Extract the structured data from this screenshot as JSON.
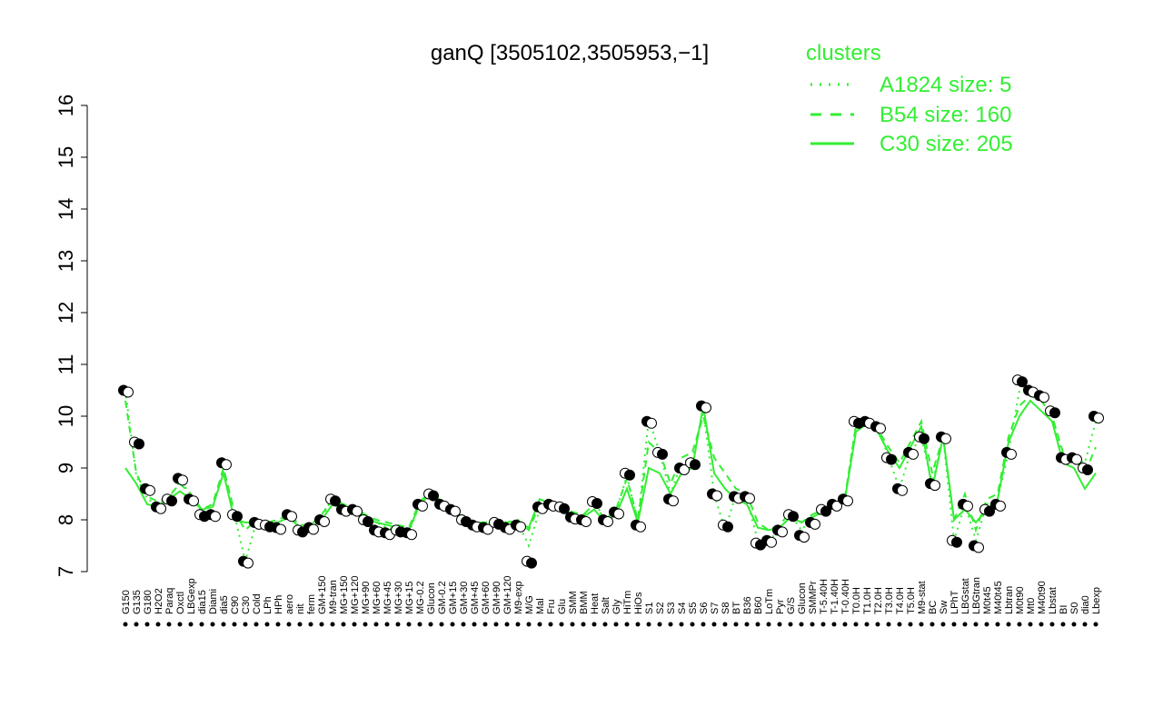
{
  "chart_data": {
    "type": "line",
    "title": "ganQ [3505102,3505953,−1]",
    "xlabel": "",
    "ylabel": "",
    "ylim": [
      7,
      16
    ],
    "yticks": [
      7,
      8,
      9,
      10,
      11,
      12,
      13,
      14,
      15,
      16
    ],
    "grid": false,
    "legend": {
      "title": "clusters",
      "placement": "top-right",
      "entries": [
        {
          "label": "A1824 size: 5",
          "style": "dotted"
        },
        {
          "label": "B54 size: 160",
          "style": "dashed"
        },
        {
          "label": "C30 size: 205",
          "style": "solid"
        }
      ]
    },
    "colors": {
      "line": "#33ee33",
      "point_fill_dark": "#000000",
      "point_fill_light": "#ffffff"
    },
    "x_tick_labels": [
      "G150",
      "G135",
      "G180",
      "H2O2",
      "Paraq",
      "Oxctl",
      "LBGexp",
      "dia15",
      "Diami",
      "dia5",
      "C90",
      "C30",
      "Cold",
      "LPh",
      "HPh",
      "aero",
      "nit",
      "ferm",
      "GM+150",
      "M9-tran",
      "MG+150",
      "MG+120",
      "MG+90",
      "MG+60",
      "MG+45",
      "MG+30",
      "MG+15",
      "MG-0.2",
      "Glucon",
      "GM-0.2",
      "GM+15",
      "GM+30",
      "GM+45",
      "GM+60",
      "GM+90",
      "GM+120",
      "M9-exp",
      "M/G",
      "Mal",
      "Fru",
      "Glu",
      "SMM",
      "BMM",
      "Heat",
      "Salt",
      "Gly",
      "HiTm",
      "HiOs",
      "S1",
      "S2",
      "S3",
      "S4",
      "S5",
      "S6",
      "S7",
      "S8",
      "BT",
      "B36",
      "B60",
      "LoTm",
      "Pyr",
      "G/S",
      "Glucon",
      "SMMPr",
      "T-5.40H",
      "T-1.40H",
      "T-0.40H",
      "T0.0H",
      "T1.0H",
      "T2.0H",
      "T3.0H",
      "T4.0H",
      "T5.0H",
      "M9-stat",
      "BC",
      "Sw",
      "LPhT",
      "LBGstat",
      "LBGtran",
      "M0t45",
      "M40t45",
      "Lbtran",
      "M0t90",
      "Mt0",
      "M40t90",
      "Lbstat",
      "BI",
      "S0",
      "dia0",
      "Lbexp"
    ],
    "series": [
      {
        "name": "A1824 size: 5",
        "values": [
          10.5,
          8.85,
          8.4,
          8.3,
          8.4,
          8.75,
          8.5,
          8.15,
          8.2,
          9.0,
          8.1,
          7.2,
          7.95,
          7.95,
          7.95,
          8.1,
          7.85,
          7.85,
          8.0,
          8.45,
          8.3,
          8.2,
          8.05,
          7.95,
          7.85,
          7.8,
          7.75,
          8.3,
          8.6,
          8.3,
          8.2,
          8.0,
          7.9,
          7.85,
          7.95,
          7.9,
          7.95,
          7.5,
          8.2,
          8.3,
          8.2,
          8.1,
          8.05,
          8.35,
          8.0,
          8.15,
          8.85,
          7.95,
          9.95,
          9.3,
          8.5,
          9.1,
          9.2,
          10.1,
          8.5,
          7.8,
          8.5,
          8.4,
          7.6,
          7.6,
          7.8,
          8.1,
          7.8,
          8.05,
          8.2,
          8.3,
          8.4,
          9.85,
          9.85,
          9.8,
          9.2,
          8.6,
          9.3,
          9.6,
          8.7,
          9.6,
          7.6,
          8.3,
          7.6,
          8.3,
          8.4,
          9.3,
          10.5,
          10.6,
          10.3,
          10.0,
          9.2,
          9.2,
          9.1,
          9.9
        ]
      },
      {
        "name": "B54 size: 160",
        "values": [
          10.3,
          8.9,
          8.45,
          8.35,
          8.45,
          8.7,
          8.5,
          8.2,
          8.3,
          9.0,
          8.15,
          7.8,
          8.0,
          7.95,
          8.0,
          8.1,
          7.9,
          7.9,
          8.1,
          8.4,
          8.3,
          8.25,
          8.1,
          8.0,
          7.95,
          7.9,
          7.85,
          8.35,
          8.55,
          8.35,
          8.2,
          8.05,
          7.95,
          7.95,
          8.0,
          7.95,
          8.0,
          7.8,
          8.3,
          8.3,
          8.25,
          8.15,
          8.1,
          8.3,
          8.0,
          8.2,
          8.8,
          8.0,
          9.5,
          9.3,
          8.7,
          9.2,
          9.3,
          10.0,
          9.2,
          8.9,
          8.6,
          8.5,
          7.95,
          7.8,
          7.9,
          8.15,
          7.95,
          8.1,
          8.2,
          8.3,
          8.45,
          9.8,
          9.85,
          9.75,
          9.4,
          9.1,
          9.5,
          9.9,
          8.9,
          9.6,
          8.0,
          8.5,
          7.8,
          8.4,
          8.5,
          9.6,
          10.2,
          10.4,
          10.3,
          10.0,
          9.3,
          9.2,
          8.9,
          9.4
        ]
      },
      {
        "name": "C30 size: 205",
        "values": [
          9.0,
          8.7,
          8.3,
          8.25,
          8.4,
          8.55,
          8.4,
          8.2,
          8.25,
          8.9,
          8.0,
          7.95,
          7.95,
          7.9,
          7.95,
          8.05,
          7.85,
          7.85,
          8.0,
          8.3,
          8.2,
          8.2,
          8.05,
          7.95,
          7.9,
          7.85,
          7.8,
          8.3,
          8.5,
          8.3,
          8.15,
          8.0,
          7.95,
          7.9,
          7.95,
          7.9,
          7.95,
          7.85,
          8.4,
          8.3,
          8.2,
          8.1,
          8.05,
          8.2,
          7.95,
          8.1,
          8.6,
          7.95,
          9.0,
          8.9,
          8.5,
          8.9,
          9.0,
          10.2,
          8.9,
          8.6,
          8.4,
          8.3,
          7.85,
          7.8,
          7.85,
          8.05,
          7.95,
          8.05,
          8.15,
          8.25,
          8.4,
          9.7,
          9.85,
          9.7,
          9.3,
          9.0,
          9.4,
          9.8,
          8.6,
          9.6,
          8.0,
          8.2,
          7.95,
          8.2,
          8.4,
          9.5,
          10.0,
          10.3,
          10.1,
          9.9,
          9.1,
          9.0,
          8.6,
          8.9
        ]
      }
    ],
    "points": [
      10.5,
      9.5,
      8.6,
      8.25,
      8.4,
      8.8,
      8.4,
      8.1,
      8.1,
      9.1,
      8.1,
      7.2,
      7.95,
      7.9,
      7.85,
      8.1,
      7.8,
      7.85,
      8.0,
      8.4,
      8.2,
      8.2,
      8.0,
      7.8,
      7.75,
      7.8,
      7.75,
      8.3,
      8.5,
      8.3,
      8.2,
      8.0,
      7.9,
      7.85,
      7.95,
      7.85,
      7.9,
      7.2,
      8.25,
      8.3,
      8.25,
      8.05,
      8.0,
      8.35,
      8.0,
      8.15,
      8.9,
      7.9,
      9.9,
      9.3,
      8.4,
      9.0,
      9.1,
      10.2,
      8.5,
      7.9,
      8.45,
      8.45,
      7.55,
      7.6,
      7.8,
      8.1,
      7.7,
      7.95,
      8.2,
      8.3,
      8.4,
      9.9,
      9.9,
      9.8,
      9.2,
      8.6,
      9.3,
      9.6,
      8.7,
      9.6,
      7.6,
      8.3,
      7.5,
      8.2,
      8.3,
      9.3,
      10.7,
      10.5,
      10.4,
      10.1,
      9.2,
      9.2,
      9.0,
      10.0
    ]
  }
}
